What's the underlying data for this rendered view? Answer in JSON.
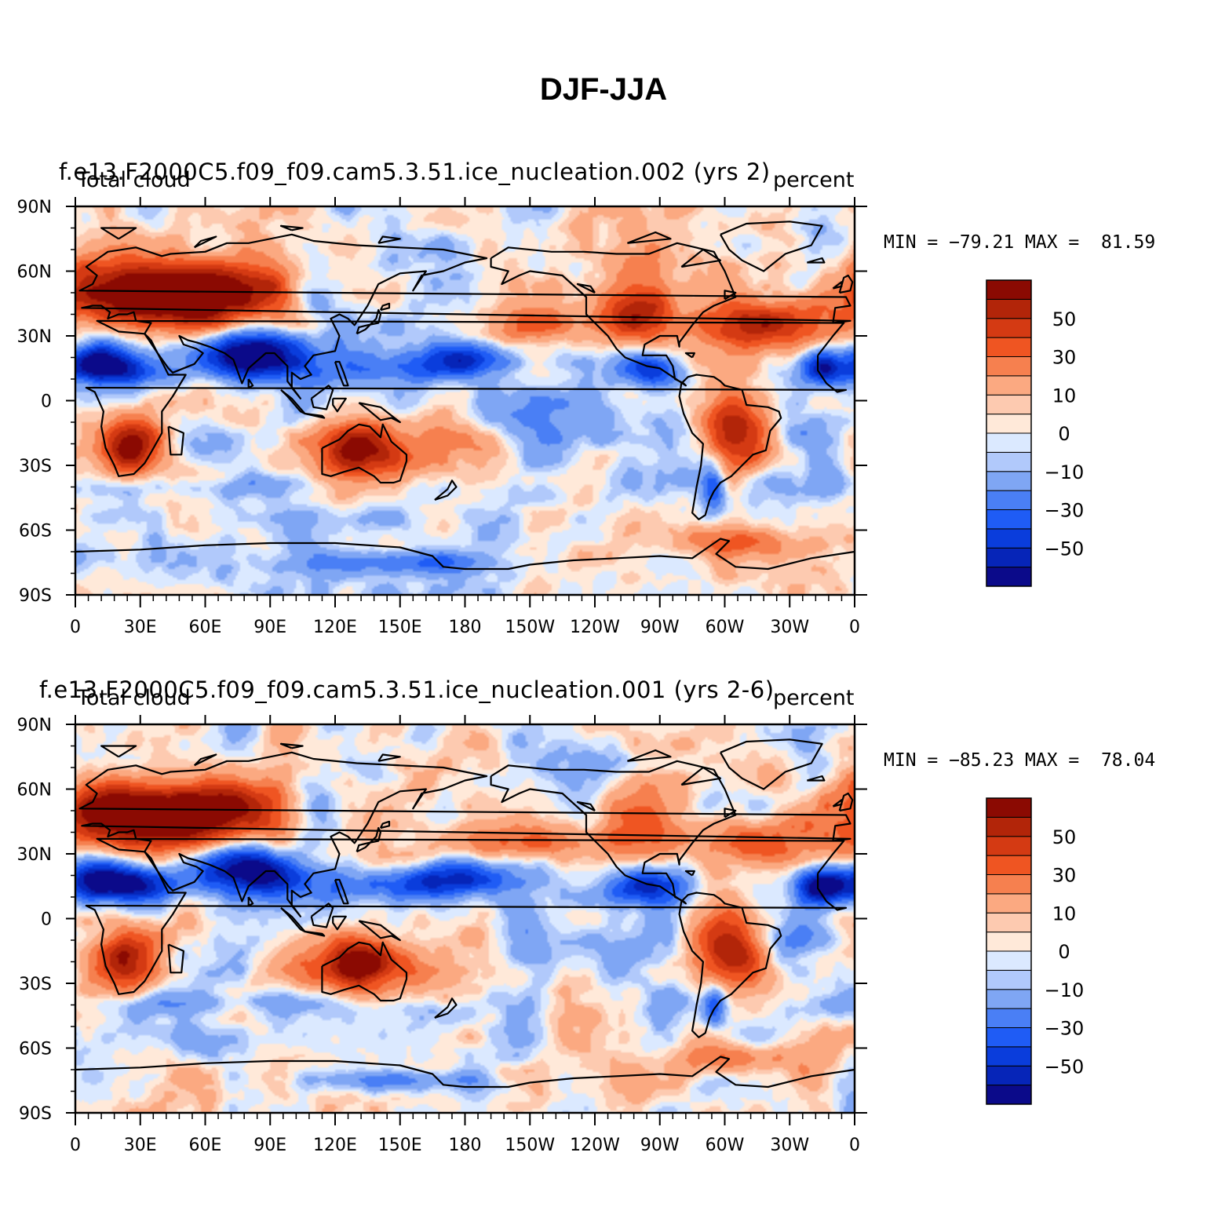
{
  "title": "DJF-JJA",
  "colors": {
    "levels": [
      "#0b0a8a",
      "#0625b8",
      "#0a3ddc",
      "#1f5cf5",
      "#4a7ff5",
      "#7fa6f4",
      "#b1c9fb",
      "#dbe9ff",
      "#ffe9d9",
      "#fdcab0",
      "#fba981",
      "#f6804f",
      "#ef5522",
      "#d43a13",
      "#b22509",
      "#8b0a02"
    ],
    "coast": "#000000"
  },
  "colorbar_labels": [
    "50",
    "30",
    "10",
    "0",
    "−10",
    "−30",
    "−50"
  ],
  "chart_data": [
    {
      "type": "heatmap",
      "run": "f.e13.F2000C5.f09_f09.cam5.3.51.ice_nucleation.002 (yrs 2)",
      "variable": "Total cloud",
      "units": "percent",
      "minmax": "MIN = −79.21 MAX =  81.59",
      "min": -79.21,
      "max": 81.59,
      "xlabels": [
        "0",
        "30E",
        "60E",
        "90E",
        "120E",
        "150E",
        "180",
        "150W",
        "120W",
        "90W",
        "60W",
        "30W",
        "0"
      ],
      "ylabels": [
        "90N",
        "60N",
        "30N",
        "0",
        "30S",
        "60S",
        "90S"
      ],
      "xlim": [
        0,
        360
      ],
      "ylim": [
        -90,
        90
      ],
      "contour_levels": [
        -70,
        -60,
        -50,
        -40,
        -30,
        -20,
        -10,
        -5,
        0,
        5,
        10,
        20,
        30,
        40,
        50,
        60,
        70
      ]
    },
    {
      "type": "heatmap",
      "run": "f.e13.F2000C5.f09_f09.cam5.3.51.ice_nucleation.001 (yrs 2-6)",
      "variable": "Total cloud",
      "units": "percent",
      "minmax": "MIN = −85.23 MAX =  78.04",
      "min": -85.23,
      "max": 78.04,
      "xlabels": [
        "0",
        "30E",
        "60E",
        "90E",
        "120E",
        "150E",
        "180",
        "150W",
        "120W",
        "90W",
        "60W",
        "30W",
        "0"
      ],
      "ylabels": [
        "90N",
        "60N",
        "30N",
        "0",
        "30S",
        "60S",
        "90S"
      ],
      "xlim": [
        0,
        360
      ],
      "ylim": [
        -90,
        90
      ],
      "contour_levels": [
        -70,
        -60,
        -50,
        -40,
        -30,
        -20,
        -10,
        -5,
        0,
        5,
        10,
        20,
        30,
        40,
        50,
        60,
        70
      ]
    }
  ]
}
